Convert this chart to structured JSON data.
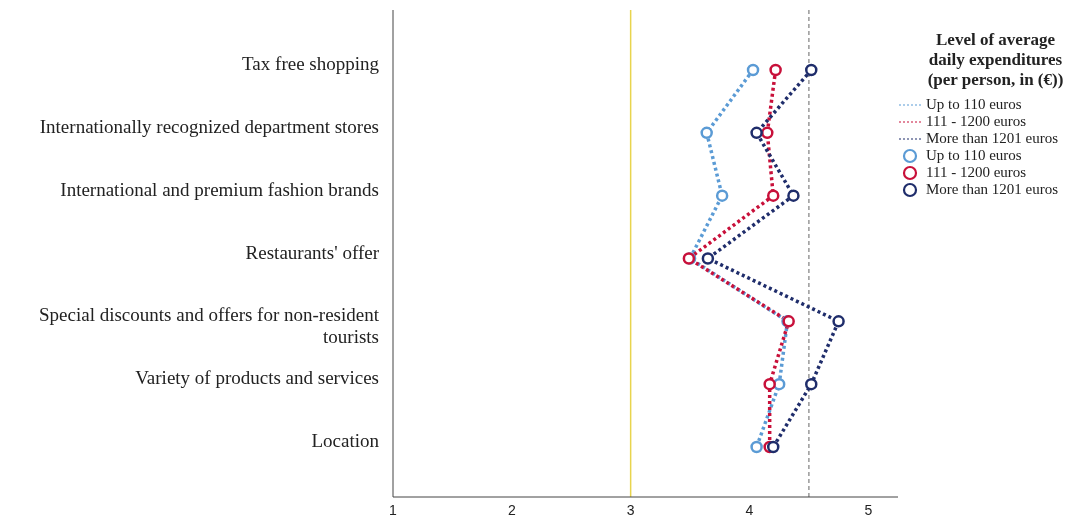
{
  "chart_data": {
    "type": "line",
    "orientation": "horizontal",
    "legend_title": "Level of average daily expenditures (per person, in (€))",
    "categories": [
      "Tax free shopping",
      "Internationally recognized department stores",
      "International and premium fashion brands",
      "Restaurants' offer",
      "Special discounts and offers for non-resident tourists",
      "Variety of products and services",
      "Location"
    ],
    "series": [
      {
        "name": "Up to 110 euros",
        "color": "#5b9bd5",
        "values": [
          4.03,
          3.64,
          3.77,
          3.5,
          4.32,
          4.25,
          4.06
        ]
      },
      {
        "name": "111 - 1200 euros",
        "color": "#c8103a",
        "values": [
          4.22,
          4.15,
          4.2,
          3.49,
          4.33,
          4.17,
          4.17
        ]
      },
      {
        "name": "More than 1201 euros",
        "color": "#1f2d6b",
        "values": [
          4.52,
          4.06,
          4.37,
          3.65,
          4.75,
          4.52,
          4.2
        ]
      }
    ],
    "xlim": [
      1,
      5.25
    ],
    "xticks": [
      1,
      2,
      3,
      4,
      5
    ],
    "ref_lines": [
      {
        "axis": "x",
        "value": 3,
        "color": "#e8d44d",
        "line_style": "solid"
      },
      {
        "axis": "x",
        "value": 4.5,
        "color": "#999999",
        "line_style": "dashed"
      }
    ],
    "legend": "right",
    "marker": "circle",
    "line_style": "dotted"
  }
}
